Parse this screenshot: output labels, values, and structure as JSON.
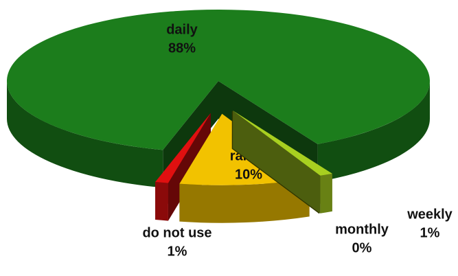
{
  "chart_data": {
    "type": "pie",
    "categories": [
      "daily",
      "do not use",
      "rarely",
      "monthly",
      "weekly"
    ],
    "values": [
      88,
      1,
      10,
      0,
      1
    ],
    "value_labels": [
      "88%",
      "1%",
      "10%",
      "0%",
      "1%"
    ],
    "colors": [
      "#1c7d1c",
      "#e01010",
      "#f2c200",
      "#6b7a00",
      "#a8d020"
    ]
  }
}
